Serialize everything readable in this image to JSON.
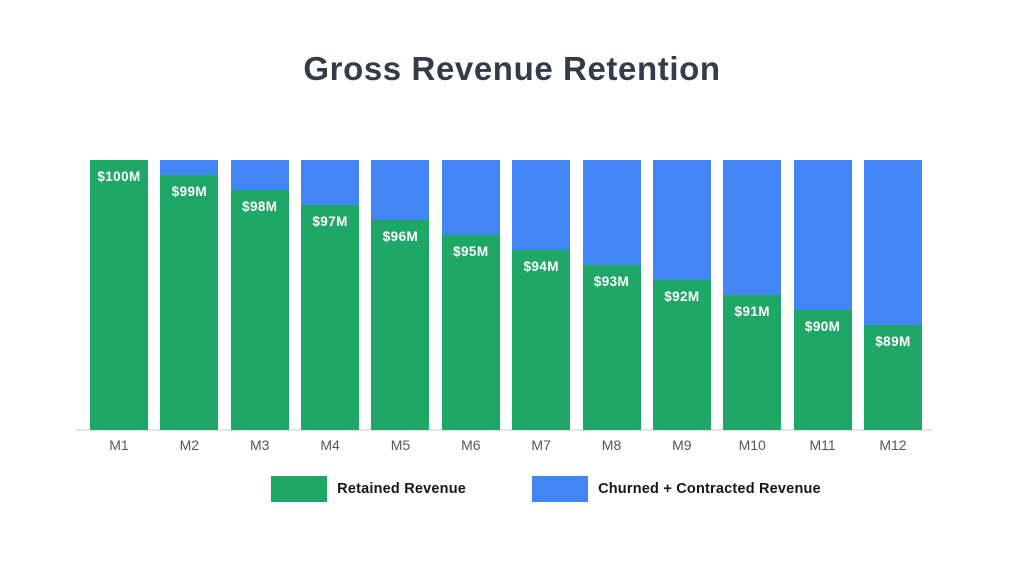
{
  "chart_data": {
    "type": "bar",
    "stacked": true,
    "title": "Gross Revenue Retention",
    "categories": [
      "M1",
      "M2",
      "M3",
      "M4",
      "M5",
      "M6",
      "M7",
      "M8",
      "M9",
      "M10",
      "M11",
      "M12"
    ],
    "series": [
      {
        "name": "Retained Revenue",
        "color": "#1FA768",
        "values": [
          100,
          99,
          98,
          97,
          96,
          95,
          94,
          93,
          92,
          91,
          90,
          89
        ],
        "bar_labels": [
          "$100M",
          "$99M",
          "$98M",
          "$97M",
          "$96M",
          "$95M",
          "$94M",
          "$93M",
          "$92M",
          "$91M",
          "$90M",
          "$89M"
        ]
      },
      {
        "name": "Churned + Contracted Revenue",
        "color": "#4285F4",
        "values": [
          0,
          1,
          2,
          3,
          4,
          5,
          6,
          7,
          8,
          9,
          10,
          11
        ]
      }
    ],
    "total_per_bar": 100,
    "xlabel": "",
    "ylabel": "",
    "ylim": [
      82,
      100
    ],
    "axis_hidden": true,
    "grid": false,
    "legend_position": "bottom"
  },
  "colors": {
    "background": "#FFFFFF",
    "title_text": "#333D4A",
    "bar_label_text": "#FFFFFF",
    "axis_tick_text": "#53585F",
    "legend_text": "#14171A",
    "baseline": "#E5E5E5",
    "retained_green": "#1FA768",
    "churned_blue": "#4285F4"
  }
}
